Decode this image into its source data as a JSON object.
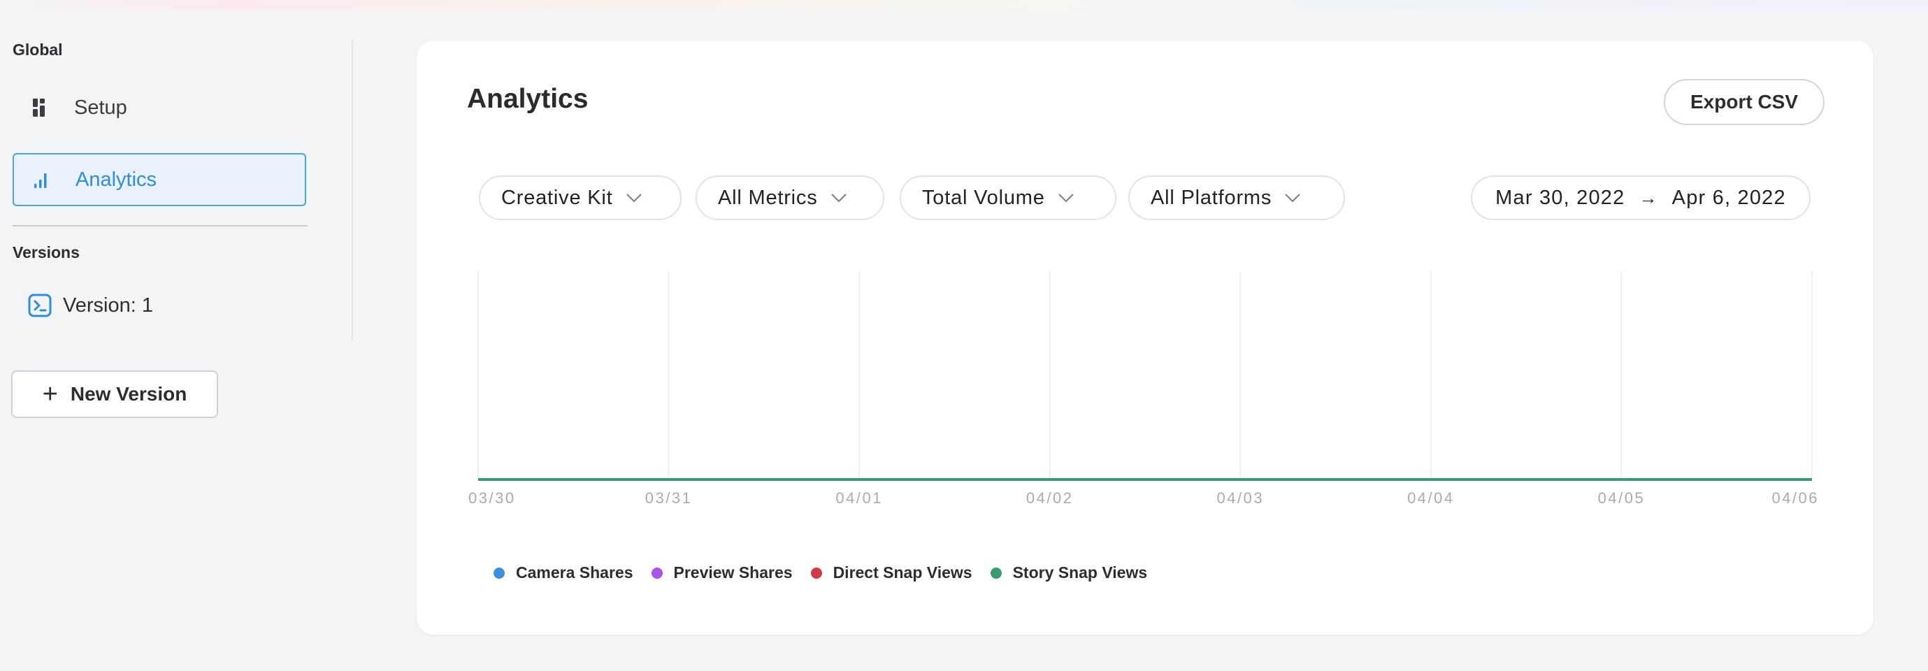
{
  "sidebar": {
    "global_label": "Global",
    "items": [
      {
        "label": "Setup",
        "icon": "grid-icon"
      },
      {
        "label": "Analytics",
        "icon": "bar-chart-icon"
      }
    ],
    "versions_label": "Versions",
    "version_item": {
      "label": "Version: 1",
      "icon": "terminal-icon"
    },
    "new_version_label": "New Version"
  },
  "main": {
    "title": "Analytics",
    "export_label": "Export CSV",
    "filters": [
      {
        "label": "Creative Kit"
      },
      {
        "label": "All Metrics"
      },
      {
        "label": "Total Volume"
      },
      {
        "label": "All Platforms"
      }
    ],
    "date_range": {
      "start": "Mar 30, 2022",
      "arrow": "→",
      "end": "Apr 6, 2022"
    }
  },
  "colors": {
    "accent": "#2f8edb",
    "camera_shares": "#3e8edf",
    "preview_shares": "#a855e8",
    "direct_snap_views": "#d03a46",
    "story_snap_views": "#3a9a72"
  },
  "chart_data": {
    "type": "line",
    "x": [
      "03/30",
      "03/31",
      "04/01",
      "04/02",
      "04/03",
      "04/04",
      "04/05",
      "04/06"
    ],
    "series": [
      {
        "name": "Camera Shares",
        "color": "#3e8edf",
        "values": [
          0,
          0,
          0,
          0,
          0,
          0,
          0,
          0
        ]
      },
      {
        "name": "Preview Shares",
        "color": "#a855e8",
        "values": [
          0,
          0,
          0,
          0,
          0,
          0,
          0,
          0
        ]
      },
      {
        "name": "Direct Snap Views",
        "color": "#d03a46",
        "values": [
          0,
          0,
          0,
          0,
          0,
          0,
          0,
          0
        ]
      },
      {
        "name": "Story Snap Views",
        "color": "#3a9a72",
        "values": [
          0,
          0,
          0,
          0,
          0,
          0,
          0,
          0
        ]
      }
    ],
    "title": "",
    "xlabel": "",
    "ylabel": "",
    "grid": true,
    "legend": "bottom-left"
  }
}
